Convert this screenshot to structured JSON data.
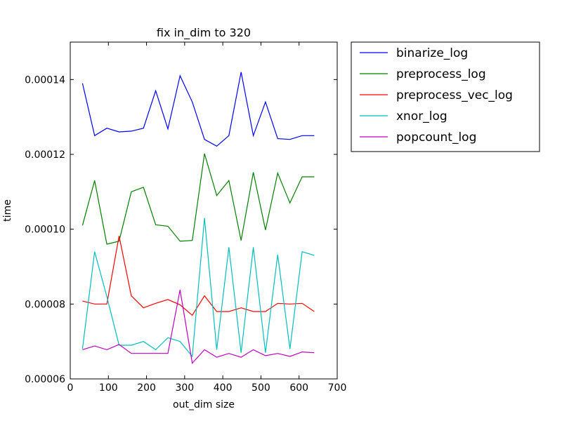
{
  "chart_data": {
    "type": "line",
    "title": "fix in_dim to 320",
    "xlabel": "out_dim size",
    "ylabel": "time",
    "xlim": [
      0,
      700
    ],
    "ylim": [
      6e-05,
      0.00015
    ],
    "xticks": [
      0,
      100,
      200,
      300,
      400,
      500,
      600,
      700
    ],
    "xtick_labels": [
      "0",
      "100",
      "200",
      "300",
      "400",
      "500",
      "600",
      "700"
    ],
    "yticks": [
      6e-05,
      8e-05,
      0.0001,
      0.00012,
      0.00014
    ],
    "ytick_labels": [
      "0.00006",
      "0.00008",
      "0.00010",
      "0.00012",
      "0.00014"
    ],
    "grid": false,
    "legend_position": "outside-right-top",
    "x": [
      32,
      64,
      96,
      128,
      160,
      192,
      224,
      256,
      288,
      320,
      352,
      384,
      416,
      448,
      480,
      512,
      544,
      576,
      608,
      640
    ],
    "series": [
      {
        "name": "binarize_log",
        "color": "#0000ff",
        "values": [
          0.000139,
          0.000125,
          0.000127,
          0.000126,
          0.0001262,
          0.000127,
          0.000137,
          0.0001268,
          0.000141,
          0.000134,
          0.000124,
          0.0001222,
          0.000125,
          0.000142,
          0.000125,
          0.000134,
          0.0001242,
          0.000124,
          0.000125,
          0.000125
        ]
      },
      {
        "name": "preprocess_log",
        "color": "#008000",
        "values": [
          0.000101,
          0.000113,
          9.6e-05,
          9.68e-05,
          0.00011,
          0.0001112,
          0.0001012,
          0.0001008,
          9.68e-05,
          9.7e-05,
          0.0001202,
          0.000109,
          0.000113,
          9.7e-05,
          0.0001152,
          9.98e-05,
          0.000115,
          0.000107,
          0.000114,
          0.000114
        ]
      },
      {
        "name": "preprocess_vec_log",
        "color": "#ff0000",
        "values": [
          8.08e-05,
          8e-05,
          8e-05,
          9.82e-05,
          8.22e-05,
          7.9e-05,
          8.02e-05,
          8.12e-05,
          7.98e-05,
          7.7e-05,
          8.22e-05,
          7.8e-05,
          7.8e-05,
          7.9e-05,
          7.8e-05,
          7.8e-05,
          8.02e-05,
          8e-05,
          8.02e-05,
          7.8e-05
        ]
      },
      {
        "name": "xnor_log",
        "color": "#00bfbf",
        "values": [
          6.8e-05,
          9.4e-05,
          8.2e-05,
          6.9e-05,
          6.9e-05,
          7e-05,
          6.78e-05,
          7.1e-05,
          7e-05,
          6.6e-05,
          0.000103,
          6.78e-05,
          9.52e-05,
          6.7e-05,
          9.52e-05,
          6.7e-05,
          9.32e-05,
          6.8e-05,
          9.4e-05,
          9.3e-05
        ]
      },
      {
        "name": "popcount_log",
        "color": "#bf00bf",
        "values": [
          6.78e-05,
          6.88e-05,
          6.78e-05,
          6.92e-05,
          6.68e-05,
          6.68e-05,
          6.68e-05,
          6.68e-05,
          8.38e-05,
          6.42e-05,
          6.78e-05,
          6.58e-05,
          6.68e-05,
          6.58e-05,
          6.78e-05,
          6.62e-05,
          6.68e-05,
          6.6e-05,
          6.72e-05,
          6.7e-05
        ]
      }
    ]
  }
}
